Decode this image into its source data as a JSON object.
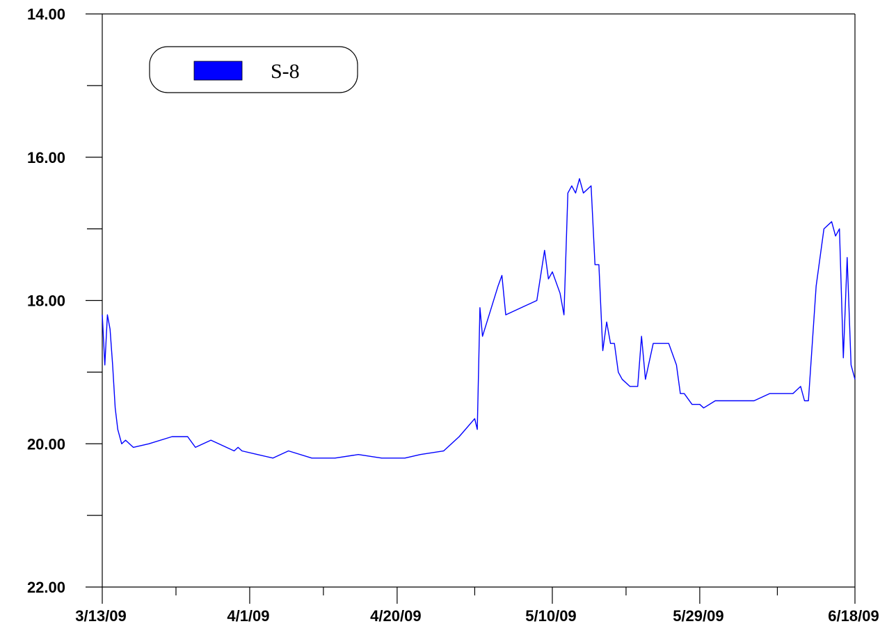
{
  "chart_data": {
    "type": "line",
    "title": "",
    "xlabel": "",
    "ylabel": "",
    "y_inverted": true,
    "ylim": [
      14.0,
      22.0
    ],
    "yticks_major": [
      "14.00",
      "16.00",
      "18.00",
      "20.00",
      "22.00"
    ],
    "yticks_minor": [
      15.0,
      17.0,
      19.0,
      21.0
    ],
    "xlim": [
      "3/13/09",
      "6/18/09"
    ],
    "xticks_major": [
      "3/13/09",
      "4/1/09",
      "4/20/09",
      "5/10/09",
      "5/29/09",
      "6/18/09"
    ],
    "grid": false,
    "legend": {
      "placement": "top-left",
      "entries": [
        "S-8"
      ]
    },
    "series": [
      {
        "name": "S-8",
        "color": "#0000ff",
        "x": [
          "3/13/09",
          "3/13/09",
          "3/13/09",
          "3/14/09",
          "3/14/09",
          "3/14/09",
          "3/15/09",
          "3/15/09",
          "3/16/09",
          "3/17/09",
          "3/19/09",
          "3/22/09",
          "3/24/09",
          "3/25/09",
          "3/27/09",
          "3/30/09",
          "3/30/09",
          "3/31/09",
          "4/2/09",
          "4/4/09",
          "4/6/09",
          "4/9/09",
          "4/12/09",
          "4/15/09",
          "4/18/09",
          "4/21/09",
          "4/23/09",
          "4/26/09",
          "4/28/09",
          "4/30/09",
          "4/30/09",
          "4/30/09",
          "5/1/09",
          "5/3/09",
          "5/3/09",
          "5/4/09",
          "5/6/09",
          "5/8/09",
          "5/9/09",
          "5/9/09",
          "5/10/09",
          "5/11/09",
          "5/11/09",
          "5/12/09",
          "5/12/09",
          "5/13/09",
          "5/13/09",
          "5/14/09",
          "5/15/09",
          "5/15/09",
          "5/16/09",
          "5/16/09",
          "5/17/09",
          "5/17/09",
          "5/18/09",
          "5/18/09",
          "5/19/09",
          "5/20/09",
          "5/21/09",
          "5/21/09",
          "5/22/09",
          "5/23/09",
          "5/25/09",
          "5/26/09",
          "5/26/09",
          "5/27/09",
          "5/28/09",
          "5/29/09",
          "5/29/09",
          "5/31/09",
          "6/3/09",
          "6/5/09",
          "6/7/09",
          "6/10/09",
          "6/11/09",
          "6/11/09",
          "6/12/09",
          "6/13/09",
          "6/14/09",
          "6/15/09",
          "6/15/09",
          "6/16/09",
          "6/16/09",
          "6/17/09",
          "6/17/09",
          "6/18/09"
        ],
        "y": [
          18.2,
          18.9,
          18.2,
          18.4,
          18.9,
          19.5,
          19.8,
          20.0,
          19.95,
          20.05,
          20.0,
          19.9,
          19.9,
          20.05,
          19.95,
          20.1,
          20.05,
          20.1,
          20.15,
          20.2,
          20.1,
          20.2,
          20.2,
          20.15,
          20.2,
          20.2,
          20.15,
          20.1,
          19.9,
          19.65,
          19.8,
          18.1,
          18.5,
          17.8,
          17.65,
          18.2,
          18.1,
          18.0,
          17.3,
          17.7,
          17.6,
          17.9,
          18.2,
          16.5,
          16.4,
          16.5,
          16.3,
          16.5,
          16.4,
          17.5,
          17.5,
          18.7,
          18.3,
          18.6,
          18.6,
          19.0,
          19.1,
          19.2,
          19.2,
          18.5,
          19.1,
          18.6,
          18.6,
          18.9,
          19.3,
          19.3,
          19.45,
          19.45,
          19.5,
          19.4,
          19.4,
          19.4,
          19.3,
          19.3,
          19.2,
          19.4,
          19.4,
          17.8,
          17.0,
          16.9,
          17.1,
          17.0,
          18.8,
          17.4,
          18.9,
          19.1
        ]
      }
    ]
  }
}
